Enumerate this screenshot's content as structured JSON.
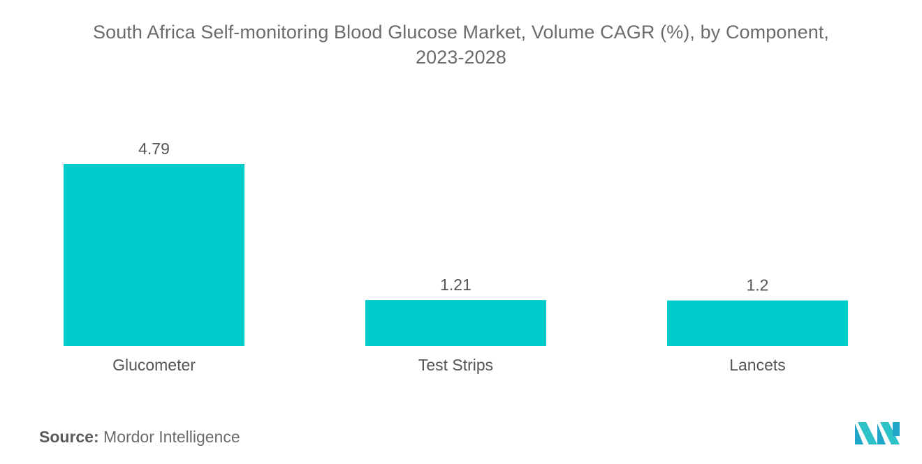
{
  "chart_data": {
    "type": "bar",
    "title_line1": "South Africa Self-monitoring Blood Glucose Market, Volume CAGR (%), by Component,",
    "title_line2": "2023-2028",
    "categories": [
      "Glucometer",
      "Test Strips",
      "Lancets"
    ],
    "values": [
      4.79,
      1.21,
      1.2
    ],
    "value_labels": [
      "4.79",
      "1.21",
      "1.2"
    ],
    "xlabel": "",
    "ylabel": "",
    "ylim": [
      0,
      4.79
    ],
    "grid": false,
    "bar_color": "#00cccc"
  },
  "footer": {
    "source_label": "Source:",
    "source_value": "Mordor Intelligence"
  },
  "brand": {
    "logo_icon": "mordor-intelligence-logo-icon",
    "colors": [
      "#1fa6c8",
      "#2bc3c8"
    ]
  }
}
